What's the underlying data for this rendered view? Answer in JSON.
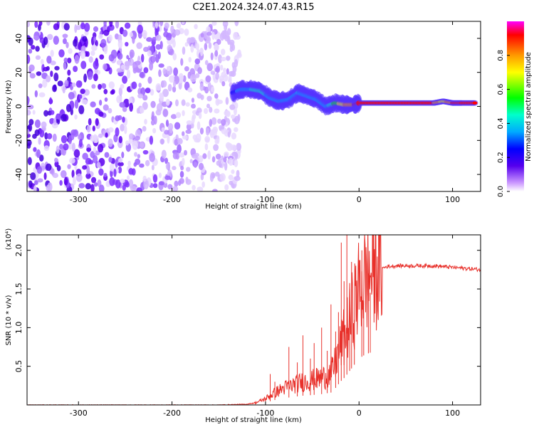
{
  "title": "C2E1.2024.324.07.43.R15",
  "chart_data": [
    {
      "type": "heatmap",
      "xlabel": "Height of straight line (km)",
      "ylabel": "Frequency (Hz)",
      "xlim": [
        -355,
        130
      ],
      "ylim": [
        -50,
        50
      ],
      "x_ticks": [
        -300,
        -200,
        -100,
        0,
        100
      ],
      "y_ticks": [
        -40,
        -20,
        0,
        20,
        40
      ],
      "colorbar": {
        "label": "Normalized spectral amplitude",
        "range": [
          0,
          1
        ],
        "ticks": [
          0.0,
          0.2,
          0.4,
          0.6,
          0.8
        ],
        "colors": [
          "#ffffff",
          "#cc99ff",
          "#5500ee",
          "#0000ff",
          "#00aaff",
          "#00ffcc",
          "#00ff00",
          "#ffff00",
          "#ff9900",
          "#ff0000",
          "#ff00ff"
        ]
      },
      "ridge": {
        "x": [
          -135,
          -125,
          -115,
          -105,
          -95,
          -85,
          -75,
          -65,
          -55,
          -45,
          -35,
          -25,
          -15,
          -5,
          0,
          20,
          40,
          60,
          80,
          90,
          100,
          110,
          125
        ],
        "y": [
          8,
          10,
          10,
          9,
          5,
          3,
          4,
          8,
          6,
          4,
          0,
          2,
          1,
          1,
          2,
          2,
          2,
          2,
          2,
          3,
          2,
          2,
          2
        ],
        "amplitude": [
          0.3,
          0.4,
          0.45,
          0.5,
          0.4,
          0.35,
          0.4,
          0.45,
          0.35,
          0.35,
          0.4,
          0.6,
          0.75,
          0.85,
          0.85,
          0.85,
          0.85,
          0.85,
          0.85,
          0.7,
          0.85,
          0.85,
          0.85
        ]
      },
      "noise_region_x": [
        -355,
        -135
      ]
    },
    {
      "type": "line",
      "xlabel": "Height of straight line (km)",
      "ylabel": "SNR (10 * v/v)",
      "y_multiplier": "(x10⁴)",
      "xlim": [
        -355,
        130
      ],
      "ylim": [
        0,
        2.2
      ],
      "x_ticks": [
        -300,
        -200,
        -100,
        0,
        100
      ],
      "y_ticks": [
        0.5,
        1.0,
        1.5,
        2.0
      ],
      "color": "#e8302a",
      "series": [
        {
          "x": [
            -355,
            -300,
            -250,
            -200,
            -150,
            -120,
            -110,
            -100,
            -90,
            -80,
            -70,
            -60,
            -50,
            -40,
            -30,
            -25,
            -20,
            -15,
            -10,
            -5,
            0,
            5,
            10,
            15,
            20,
            25,
            30,
            40,
            50,
            60,
            70,
            80,
            90,
            100,
            110,
            120,
            130
          ],
          "y": [
            0.0,
            0.0,
            0.0,
            0.0,
            0.0,
            0.01,
            0.03,
            0.08,
            0.16,
            0.22,
            0.26,
            0.3,
            0.32,
            0.35,
            0.4,
            0.55,
            0.75,
            0.9,
            1.1,
            1.3,
            1.5,
            1.6,
            1.67,
            1.72,
            1.75,
            1.77,
            1.79,
            1.8,
            1.8,
            1.8,
            1.8,
            1.8,
            1.79,
            1.78,
            1.77,
            1.76,
            1.75
          ]
        }
      ],
      "spikes": {
        "x": [
          -95,
          -90,
          -75,
          -66,
          -60,
          -52,
          -48,
          -40,
          -34,
          -30,
          -25,
          -22,
          -19,
          -16,
          -13,
          -10,
          -8,
          -5,
          3,
          5,
          10,
          12
        ],
        "y": [
          0.4,
          0.3,
          0.75,
          0.55,
          0.9,
          0.6,
          0.8,
          1.0,
          0.7,
          1.3,
          0.95,
          1.2,
          2.1,
          1.6,
          2.25,
          1.5,
          1.85,
          1.1,
          2.0,
          1.35,
          1.7,
          1.45
        ]
      }
    }
  ]
}
